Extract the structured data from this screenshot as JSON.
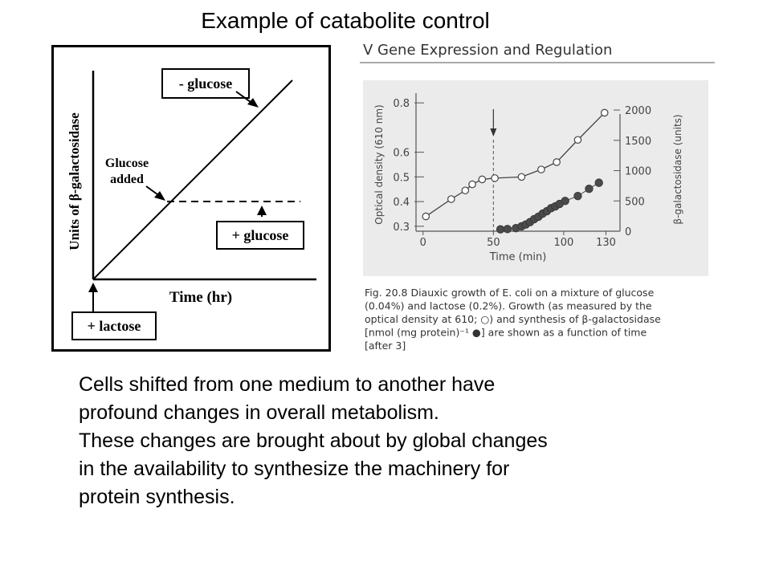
{
  "slide": {
    "title": "Example of catabolite control",
    "body_lines": [
      "Cells shifted from one medium to another have",
      "profound changes in overall metabolism.",
      "These changes are brought about by global changes",
      "in the availability to synthesize the machinery for",
      "protein synthesis."
    ]
  },
  "left_diagram": {
    "ylabel": "Units of β-galactosidase",
    "xlabel": "Time (hr)",
    "minus_glucose": "- glucose",
    "plus_glucose": "+ glucose",
    "plus_lactose": "+ lactose",
    "glucose_added_1": "Glucose",
    "glucose_added_2": "added"
  },
  "book_figure": {
    "header": "V   Gene Expression and Regulation",
    "caption_lines": [
      "Fig. 20.8   Diauxic growth of E. coli on a mixture of glucose",
      "(0.04%) and lactose (0.2%). Growth (as measured by the",
      "optical density at 610; ○) and synthesis of β-galactosidase",
      "[nmol (mg protein)⁻¹ ●] are shown as a function of time",
      "[after 3]"
    ]
  },
  "chart_data": {
    "type": "scatter",
    "xlabel": "Time (min)",
    "ylabel_left": "Optical density (610 nm)",
    "ylabel_right": "β-galactosidase (units)",
    "x_ticks": [
      "0",
      "50",
      "100",
      "130"
    ],
    "x_tick_values": [
      0,
      50,
      100,
      130
    ],
    "y_left_ticks": [
      "0.3",
      "0.4",
      "0.5",
      "0.6",
      "0.8"
    ],
    "y_left_tick_values": [
      0.3,
      0.4,
      0.5,
      0.6,
      0.8
    ],
    "y_right_ticks": [
      "0",
      "500",
      "1000",
      "1500",
      "2000"
    ],
    "y_right_tick_values": [
      0,
      500,
      1000,
      1500,
      2000
    ],
    "xlim": [
      -5,
      140
    ],
    "ylim_left": [
      0.28,
      0.82
    ],
    "ylim_right": [
      0,
      2200
    ],
    "series": [
      {
        "name": "Optical density",
        "marker": "open",
        "axis": "left",
        "x": [
          2,
          20,
          30,
          35,
          42,
          51,
          70,
          84,
          95,
          110,
          129
        ],
        "y": [
          0.34,
          0.41,
          0.445,
          0.47,
          0.49,
          0.495,
          0.5,
          0.53,
          0.56,
          0.65,
          0.76
        ]
      },
      {
        "name": "β-galactosidase",
        "marker": "filled",
        "axis": "right",
        "x": [
          55,
          60,
          66,
          70,
          73,
          76,
          79,
          82,
          85,
          88,
          91,
          94,
          97,
          101,
          110,
          118,
          125
        ],
        "y": [
          30,
          35,
          50,
          80,
          110,
          150,
          200,
          240,
          290,
          330,
          380,
          410,
          450,
          500,
          580,
          700,
          800
        ]
      }
    ],
    "annotation": "arrow at 50 min"
  }
}
